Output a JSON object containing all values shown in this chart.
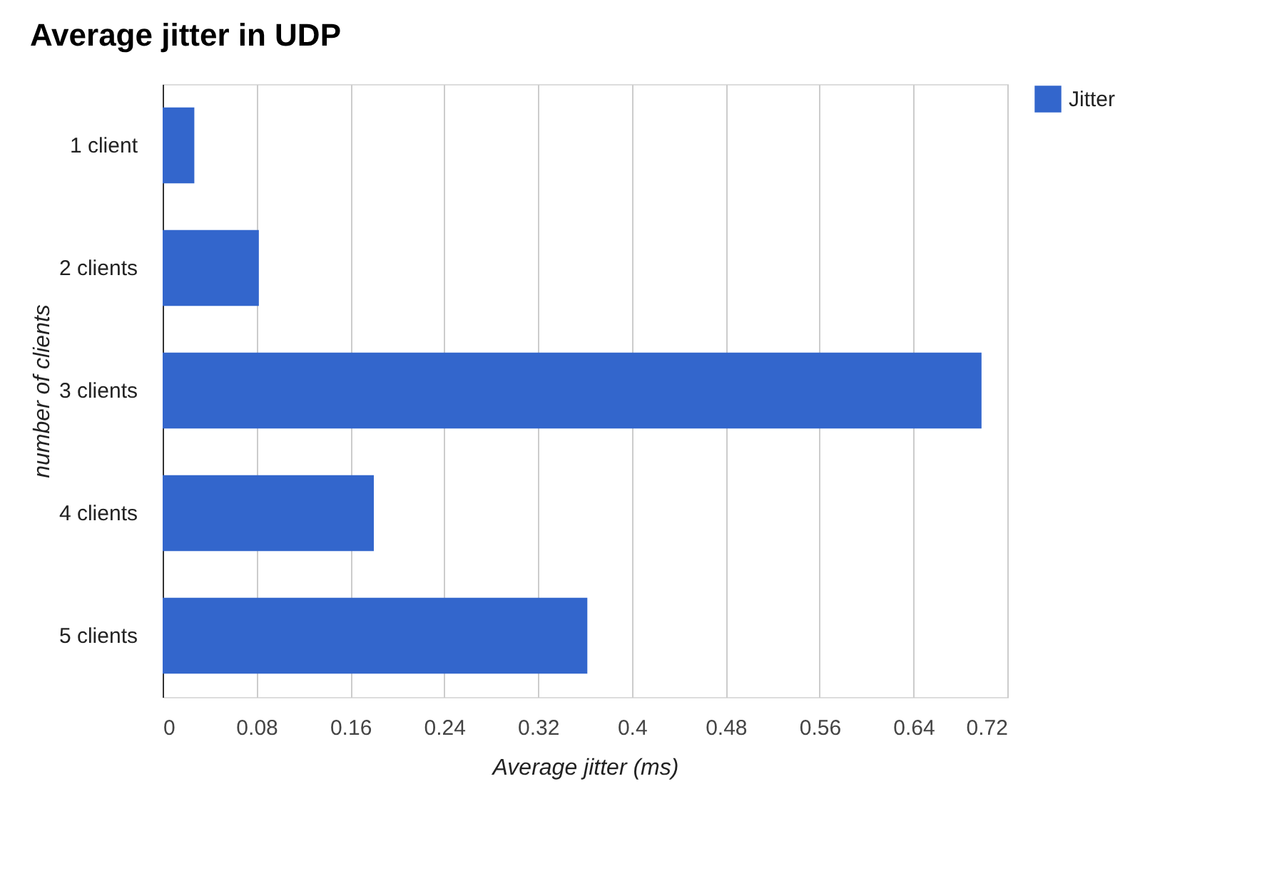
{
  "chart_data": {
    "type": "bar",
    "orientation": "horizontal",
    "title": "Average jitter in UDP",
    "xlabel": "Average jitter (ms)",
    "ylabel": "number of clients",
    "categories": [
      "1 client",
      "2 clients",
      "3 clients",
      "4 clients",
      "5 clients"
    ],
    "series": [
      {
        "name": "Jitter",
        "color": "#3366cc",
        "values": [
          0.027,
          0.082,
          0.698,
          0.18,
          0.362
        ]
      }
    ],
    "xlim": [
      0,
      0.72
    ],
    "xticks": [
      0,
      0.08,
      0.16,
      0.24,
      0.32,
      0.4,
      0.48,
      0.56,
      0.64,
      0.72
    ],
    "grid": "x",
    "legend": "top right"
  }
}
